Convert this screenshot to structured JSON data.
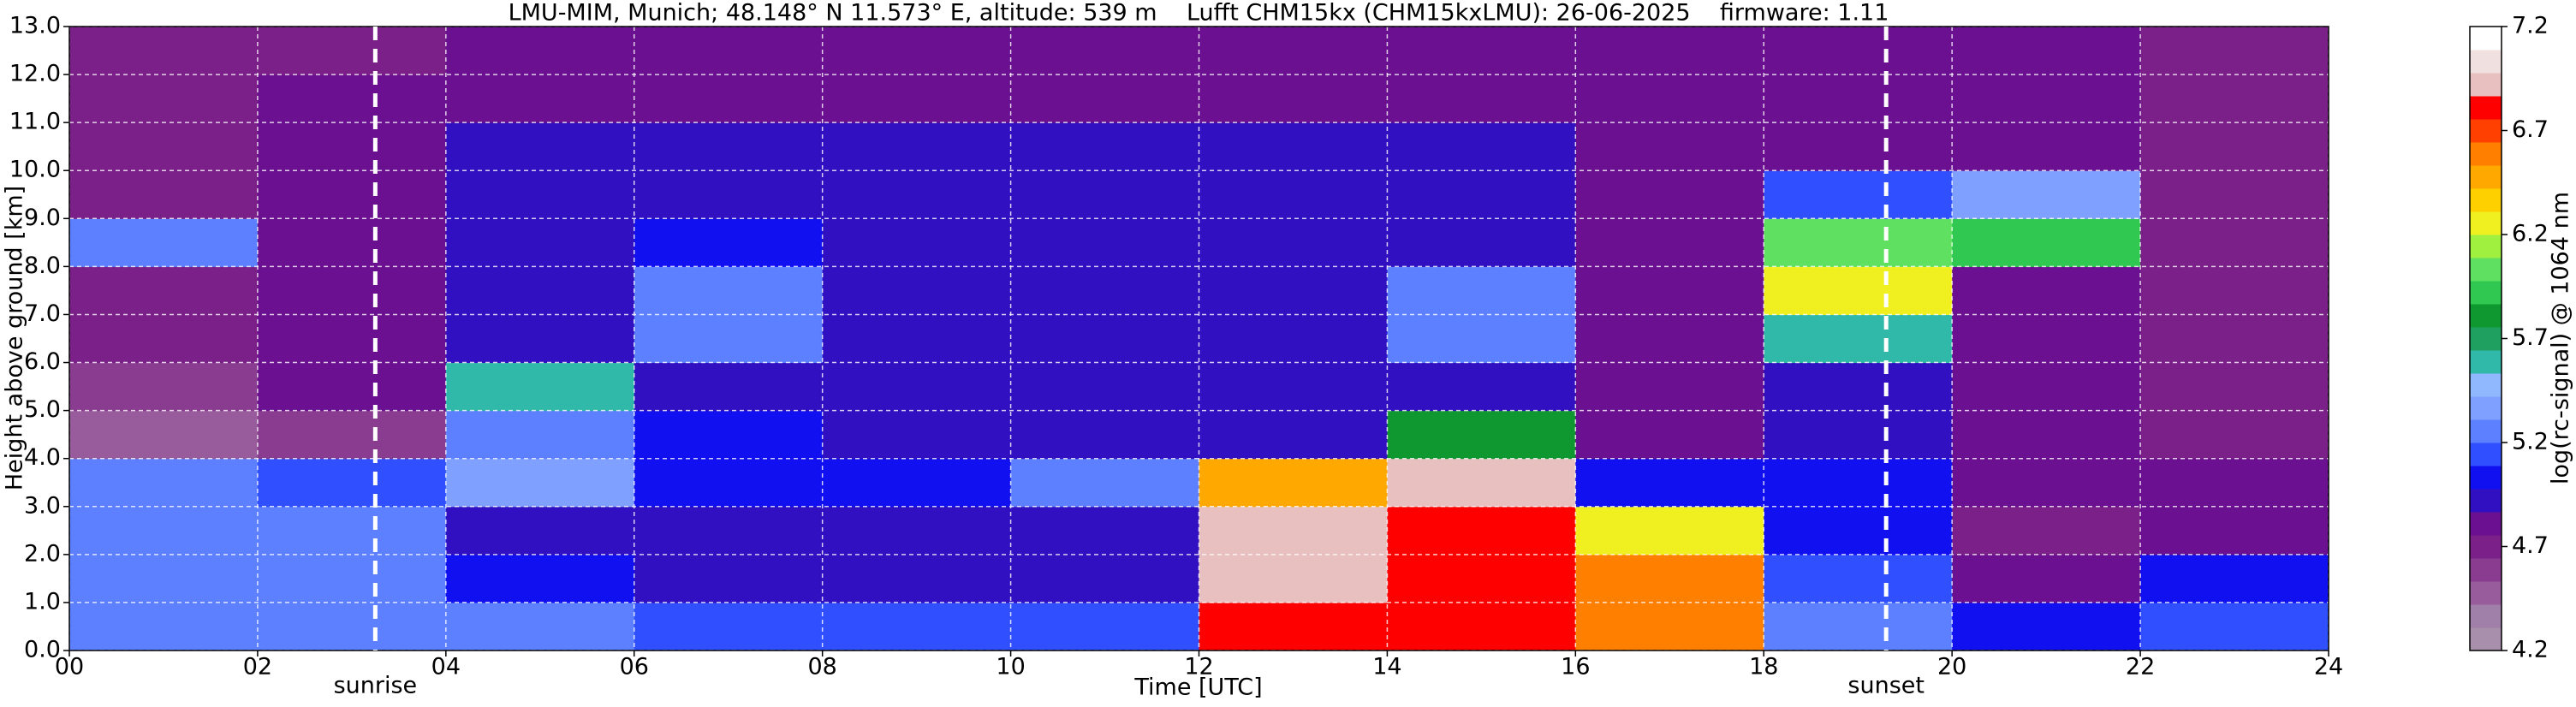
{
  "chart_data": {
    "type": "heatmap",
    "title": "LMU-MIM, Munich; 48.148° N 11.573° E, altitude: 539 m    Lufft CHM15kx (CHM15kxLMU): 26-06-2025    firmware: 1.11",
    "x_label": "Time [UTC]",
    "y_label": "Height above ground [km]",
    "colorbar_label": "log(rc-signal) @ 1064 nm",
    "xlim": [
      0,
      24
    ],
    "ylim": [
      0,
      13
    ],
    "xticks": [
      {
        "value": 0,
        "label": "00"
      },
      {
        "value": 2,
        "label": "02"
      },
      {
        "value": 4,
        "label": "04"
      },
      {
        "value": 6,
        "label": "06"
      },
      {
        "value": 8,
        "label": "08"
      },
      {
        "value": 10,
        "label": "10"
      },
      {
        "value": 12,
        "label": "12"
      },
      {
        "value": 14,
        "label": "14"
      },
      {
        "value": 16,
        "label": "16"
      },
      {
        "value": 18,
        "label": "18"
      },
      {
        "value": 20,
        "label": "20"
      },
      {
        "value": 22,
        "label": "22"
      },
      {
        "value": 24,
        "label": "24"
      }
    ],
    "yticks": [
      {
        "value": 0,
        "label": "0.0"
      },
      {
        "value": 1,
        "label": "1.0"
      },
      {
        "value": 2,
        "label": "2.0"
      },
      {
        "value": 3,
        "label": "3.0"
      },
      {
        "value": 4,
        "label": "4.0"
      },
      {
        "value": 5,
        "label": "5.0"
      },
      {
        "value": 6,
        "label": "6.0"
      },
      {
        "value": 7,
        "label": "7.0"
      },
      {
        "value": 8,
        "label": "8.0"
      },
      {
        "value": 9,
        "label": "9.0"
      },
      {
        "value": 10,
        "label": "10.0"
      },
      {
        "value": 11,
        "label": "11.0"
      },
      {
        "value": 12,
        "label": "12.0"
      },
      {
        "value": 13,
        "label": "13.0"
      }
    ],
    "grid": true,
    "x_edges": [
      0,
      2,
      4,
      6,
      8,
      10,
      12,
      14,
      16,
      18,
      20,
      22,
      24
    ],
    "y_edges": [
      0,
      1,
      2,
      3,
      4,
      5,
      6,
      7,
      8,
      9,
      10,
      11,
      12,
      13
    ],
    "z": [
      [
        5.3,
        5.3,
        5.2,
        5.1,
        5.1,
        5.1,
        6.8,
        6.8,
        6.6,
        5.2,
        5.0,
        5.1
      ],
      [
        5.2,
        5.2,
        5.0,
        4.9,
        4.9,
        4.9,
        6.9,
        6.8,
        6.6,
        5.1,
        4.8,
        5.0
      ],
      [
        5.2,
        5.2,
        4.9,
        4.9,
        4.9,
        4.9,
        6.9,
        6.8,
        6.3,
        5.0,
        4.7,
        4.8
      ],
      [
        5.2,
        5.1,
        5.4,
        5.0,
        5.0,
        5.2,
        6.5,
        6.9,
        5.0,
        5.0,
        4.8,
        4.8
      ],
      [
        4.5,
        4.6,
        5.3,
        5.0,
        4.9,
        4.9,
        4.9,
        5.8,
        4.8,
        4.9,
        4.8,
        4.7
      ],
      [
        4.6,
        4.8,
        5.6,
        4.9,
        4.9,
        4.9,
        4.9,
        4.9,
        4.8,
        4.9,
        4.8,
        4.7
      ],
      [
        4.7,
        4.8,
        4.9,
        5.3,
        4.9,
        4.9,
        4.9,
        5.2,
        4.8,
        5.6,
        4.8,
        4.7
      ],
      [
        4.7,
        4.8,
        4.9,
        5.2,
        4.9,
        4.9,
        4.9,
        5.3,
        4.8,
        6.2,
        4.8,
        4.7
      ],
      [
        5.3,
        4.8,
        4.9,
        5.0,
        4.9,
        4.9,
        4.9,
        4.9,
        4.8,
        6.0,
        5.9,
        4.7
      ],
      [
        4.7,
        4.8,
        4.9,
        4.9,
        4.9,
        4.9,
        4.9,
        4.9,
        4.8,
        5.1,
        5.4,
        4.7
      ],
      [
        4.7,
        4.8,
        4.9,
        4.9,
        4.9,
        4.9,
        4.9,
        4.9,
        4.8,
        4.8,
        4.8,
        4.7
      ],
      [
        4.7,
        4.8,
        4.8,
        4.8,
        4.8,
        4.8,
        4.8,
        4.8,
        4.8,
        4.8,
        4.8,
        4.7
      ],
      [
        4.7,
        4.7,
        4.8,
        4.8,
        4.8,
        4.8,
        4.8,
        4.8,
        4.8,
        4.8,
        4.8,
        4.7
      ]
    ],
    "clim": [
      4.2,
      7.2
    ],
    "cticks": [
      4.2,
      4.7,
      5.2,
      5.7,
      6.2,
      6.7,
      7.2
    ],
    "colors": [
      "#a890ac",
      "#a080a8",
      "#985c9c",
      "#8a3c90",
      "#7a2088",
      "#6a1090",
      "#3010c0",
      "#1010f0",
      "#3050ff",
      "#5c80ff",
      "#80a0ff",
      "#90b8ff",
      "#30b8a8",
      "#20a060",
      "#109830",
      "#30c850",
      "#60e060",
      "#a0f040",
      "#f0f020",
      "#ffd000",
      "#ffa800",
      "#ff8000",
      "#ff4000",
      "#ff0000",
      "#e8c0c0",
      "#f0e0e0",
      "#ffffff"
    ],
    "annotations": [
      {
        "text": "sunrise",
        "x": 3.25
      },
      {
        "text": "sunset",
        "x": 19.3
      }
    ]
  }
}
